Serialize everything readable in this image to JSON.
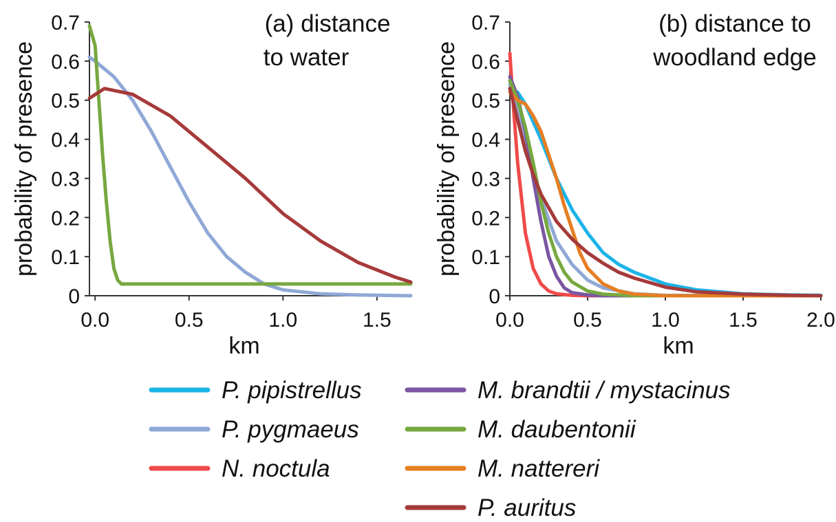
{
  "chart_data": [
    {
      "type": "line",
      "title": "(a) distance to water",
      "title_lines": [
        "(a) distance",
        "to water"
      ],
      "xlabel": "km",
      "ylabel": "probability of presence",
      "xlim": [
        -0.03,
        1.68
      ],
      "ylim": [
        0,
        0.7
      ],
      "xticks": [
        "0.0",
        "0.5",
        "1.0",
        "1.5"
      ],
      "yticks": [
        "0",
        "0.1",
        "0.2",
        "0.3",
        "0.4",
        "0.5",
        "0.6",
        "0.7"
      ],
      "series": [
        {
          "name": "P. pygmaeus",
          "color": "#8fa8d6",
          "x": [
            -0.03,
            0.0,
            0.1,
            0.2,
            0.3,
            0.4,
            0.5,
            0.6,
            0.7,
            0.8,
            0.9,
            1.0,
            1.2,
            1.4,
            1.68
          ],
          "y": [
            0.61,
            0.6,
            0.56,
            0.5,
            0.42,
            0.33,
            0.24,
            0.16,
            0.1,
            0.06,
            0.03,
            0.015,
            0.005,
            0.002,
            0.0
          ]
        },
        {
          "name": "M. daubentonii",
          "color": "#77a83f",
          "x": [
            -0.03,
            0.0,
            0.02,
            0.04,
            0.06,
            0.08,
            0.1,
            0.12,
            0.14,
            0.5,
            1.0,
            1.68
          ],
          "y": [
            0.69,
            0.64,
            0.5,
            0.36,
            0.24,
            0.14,
            0.07,
            0.04,
            0.03,
            0.03,
            0.03,
            0.03
          ]
        },
        {
          "name": "P. auritus",
          "color": "#a63a3a",
          "x": [
            -0.03,
            0.05,
            0.2,
            0.4,
            0.6,
            0.8,
            1.0,
            1.2,
            1.4,
            1.6,
            1.68
          ],
          "y": [
            0.505,
            0.53,
            0.515,
            0.46,
            0.38,
            0.3,
            0.21,
            0.14,
            0.085,
            0.047,
            0.035
          ]
        }
      ]
    },
    {
      "type": "line",
      "title": "(b) distance to woodland edge",
      "title_lines": [
        "(b) distance to",
        "woodland edge"
      ],
      "xlabel": "km",
      "ylabel": "probability of presence",
      "xlim": [
        0,
        2.0
      ],
      "ylim": [
        0,
        0.7
      ],
      "xticks": [
        "0.0",
        "0.5",
        "1.0",
        "1.5",
        "2.0"
      ],
      "yticks": [
        "0",
        "0.1",
        "0.2",
        "0.3",
        "0.4",
        "0.5",
        "0.6",
        "0.7"
      ],
      "series": [
        {
          "name": "P. pipistrellus",
          "color": "#1cb3e6",
          "x": [
            0.0,
            0.05,
            0.1,
            0.2,
            0.3,
            0.4,
            0.5,
            0.6,
            0.7,
            0.8,
            1.0,
            1.2,
            1.5,
            1.8,
            2.0
          ],
          "y": [
            0.53,
            0.52,
            0.49,
            0.4,
            0.3,
            0.22,
            0.16,
            0.11,
            0.08,
            0.06,
            0.03,
            0.015,
            0.005,
            0.002,
            0.001
          ]
        },
        {
          "name": "P. pygmaeus",
          "color": "#8fa8d6",
          "x": [
            0.0,
            0.05,
            0.1,
            0.2,
            0.3,
            0.4,
            0.5,
            0.6,
            0.8,
            1.0,
            2.0
          ],
          "y": [
            0.54,
            0.48,
            0.4,
            0.25,
            0.14,
            0.08,
            0.04,
            0.02,
            0.005,
            0.001,
            0.0
          ]
        },
        {
          "name": "N. noctula",
          "color": "#f04a4a",
          "x": [
            0.0,
            0.02,
            0.05,
            0.1,
            0.15,
            0.2,
            0.25,
            0.3,
            0.4,
            0.5,
            2.0
          ],
          "y": [
            0.62,
            0.5,
            0.34,
            0.16,
            0.07,
            0.03,
            0.012,
            0.005,
            0.001,
            0.0,
            0.0
          ]
        },
        {
          "name": "M. brandtii / mystacinus",
          "color": "#7a56a3",
          "x": [
            0.0,
            0.05,
            0.1,
            0.15,
            0.2,
            0.25,
            0.3,
            0.35,
            0.4,
            0.5,
            0.6,
            2.0
          ],
          "y": [
            0.56,
            0.51,
            0.42,
            0.3,
            0.19,
            0.1,
            0.05,
            0.02,
            0.008,
            0.002,
            0.0,
            0.0
          ]
        },
        {
          "name": "M. daubentonii",
          "color": "#77a83f",
          "x": [
            0.0,
            0.05,
            0.1,
            0.15,
            0.2,
            0.25,
            0.3,
            0.35,
            0.4,
            0.5,
            0.6,
            0.8,
            2.0
          ],
          "y": [
            0.55,
            0.5,
            0.43,
            0.34,
            0.24,
            0.16,
            0.1,
            0.06,
            0.035,
            0.012,
            0.004,
            0.0,
            0.0
          ]
        },
        {
          "name": "M. nattereri",
          "color": "#e67e22",
          "x": [
            0.0,
            0.05,
            0.1,
            0.15,
            0.2,
            0.25,
            0.3,
            0.35,
            0.4,
            0.45,
            0.5,
            0.6,
            0.7,
            0.8,
            1.0,
            2.0
          ],
          "y": [
            0.52,
            0.5,
            0.49,
            0.46,
            0.42,
            0.36,
            0.3,
            0.23,
            0.17,
            0.11,
            0.07,
            0.03,
            0.012,
            0.004,
            0.0,
            0.0
          ]
        },
        {
          "name": "P. auritus",
          "color": "#a63a3a",
          "x": [
            0.0,
            0.05,
            0.1,
            0.15,
            0.2,
            0.3,
            0.4,
            0.5,
            0.6,
            0.7,
            0.8,
            1.0,
            1.2,
            1.5,
            1.8,
            2.0
          ],
          "y": [
            0.53,
            0.45,
            0.37,
            0.31,
            0.26,
            0.19,
            0.145,
            0.11,
            0.083,
            0.06,
            0.045,
            0.022,
            0.01,
            0.004,
            0.001,
            0.0
          ]
        }
      ]
    }
  ],
  "legend": {
    "columns": [
      [
        {
          "label": "P. pipistrellus",
          "color": "#1cb3e6"
        },
        {
          "label": "P. pygmaeus",
          "color": "#8fa8d6"
        },
        {
          "label": "N. noctula",
          "color": "#f04a4a"
        }
      ],
      [
        {
          "label": "M. brandtii / mystacinus",
          "color": "#7a56a3"
        },
        {
          "label": "M. daubentonii",
          "color": "#77a83f"
        },
        {
          "label": "M. nattereri",
          "color": "#e67e22"
        },
        {
          "label": "P. auritus",
          "color": "#a63a3a"
        }
      ]
    ]
  }
}
